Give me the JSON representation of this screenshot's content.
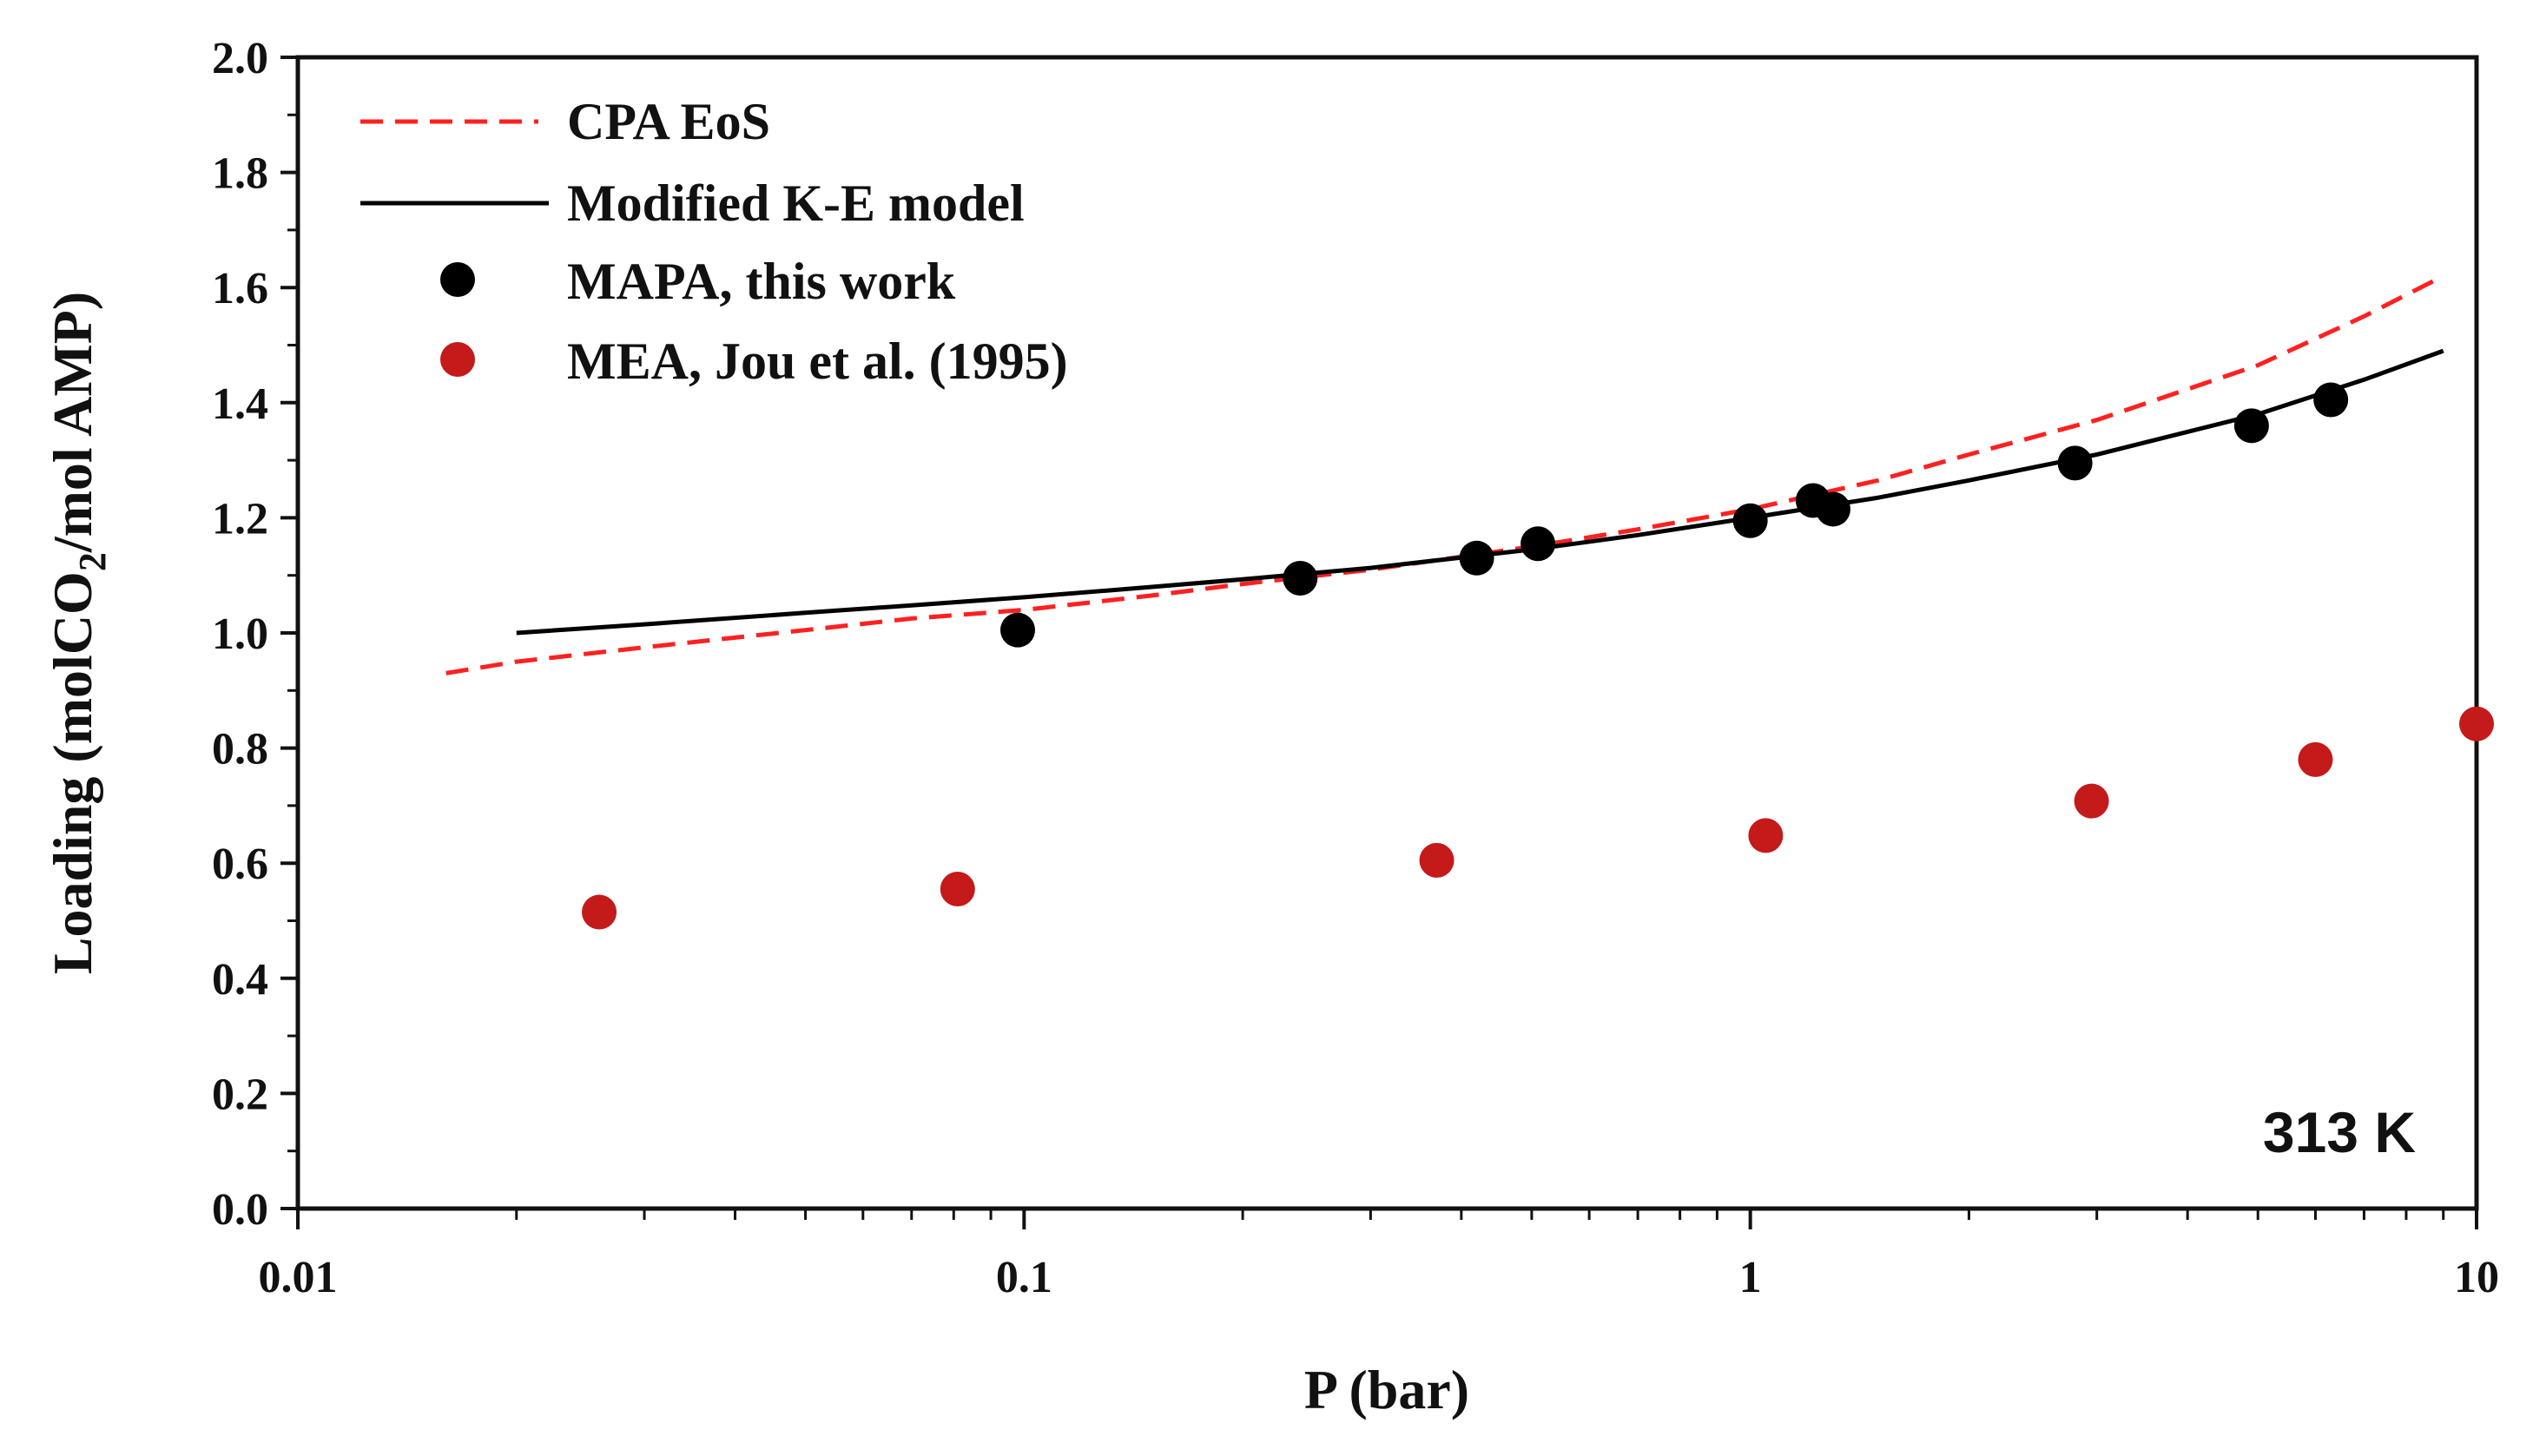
{
  "chart_data": {
    "type": "scatter",
    "title": "",
    "xlabel": "P (bar)",
    "ylabel_parts": [
      "Loading (molCO",
      "2",
      "/mol AMP)"
    ],
    "xscale": "log",
    "xlim": [
      0.01,
      10
    ],
    "ylim": [
      0.0,
      2.0
    ],
    "grid": false,
    "legend_position": "top-left",
    "annotation": "313 K",
    "x_ticks": [
      0.01,
      0.1,
      1,
      10
    ],
    "x_tick_labels": [
      "0.01",
      "0.1",
      "1",
      "10"
    ],
    "y_ticks": [
      0.0,
      0.2,
      0.4,
      0.6,
      0.8,
      1.0,
      1.2,
      1.4,
      1.6,
      1.8,
      2.0
    ],
    "y_tick_labels": [
      "0.0",
      "0.2",
      "0.4",
      "0.6",
      "0.8",
      "1.0",
      "1.2",
      "1.4",
      "1.6",
      "1.8",
      "2.0"
    ],
    "series": [
      {
        "name": "CPA EoS",
        "kind": "line",
        "style": "dashed",
        "color": "#ff2020",
        "x": [
          0.016,
          0.02,
          0.03,
          0.05,
          0.07,
          0.1,
          0.15,
          0.2,
          0.3,
          0.5,
          0.7,
          1.0,
          1.5,
          2.0,
          3.0,
          5.0,
          7.0,
          9.0
        ],
        "y": [
          0.93,
          0.95,
          0.975,
          1.005,
          1.025,
          1.04,
          1.065,
          1.085,
          1.11,
          1.15,
          1.18,
          1.215,
          1.265,
          1.31,
          1.37,
          1.465,
          1.55,
          1.62
        ]
      },
      {
        "name": "Modified K-E model",
        "kind": "line",
        "style": "solid",
        "color": "#000000",
        "x": [
          0.02,
          0.03,
          0.05,
          0.07,
          0.1,
          0.15,
          0.2,
          0.3,
          0.5,
          0.7,
          1.0,
          1.5,
          2.0,
          3.0,
          5.0,
          7.0,
          9.0
        ],
        "y": [
          1.0,
          1.015,
          1.035,
          1.048,
          1.062,
          1.08,
          1.093,
          1.113,
          1.145,
          1.17,
          1.2,
          1.235,
          1.265,
          1.31,
          1.38,
          1.44,
          1.49
        ]
      },
      {
        "name": "MAPA, this work",
        "kind": "scatter",
        "color": "#000000",
        "x": [
          0.098,
          0.24,
          0.42,
          0.51,
          1.0,
          1.22,
          1.3,
          2.8,
          4.9,
          6.3
        ],
        "y": [
          1.005,
          1.095,
          1.13,
          1.155,
          1.195,
          1.23,
          1.215,
          1.295,
          1.36,
          1.405
        ],
        "errors": [
          0.02,
          0.02,
          0.02,
          0.02,
          0.02,
          0.0,
          0.0,
          0.0,
          0.0,
          0.0
        ]
      },
      {
        "name": "MEA, Jou et al. (1995)",
        "kind": "scatter",
        "color": "#c41a1a",
        "x": [
          0.026,
          0.081,
          0.37,
          1.05,
          2.95,
          6.0,
          10.0
        ],
        "y": [
          0.515,
          0.555,
          0.605,
          0.648,
          0.708,
          0.78,
          0.842
        ],
        "errors": [
          0,
          0,
          0,
          0,
          0,
          0,
          0
        ]
      }
    ]
  }
}
